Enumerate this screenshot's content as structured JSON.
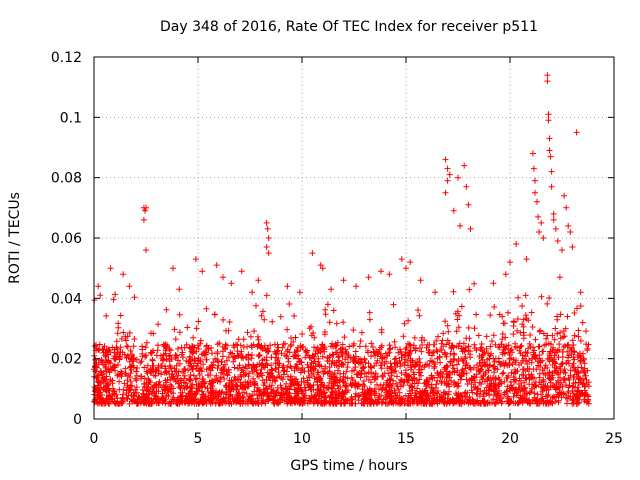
{
  "chart_data": {
    "type": "scatter",
    "title": "Day 348 of 2016, Rate Of TEC Index for receiver p511",
    "xlabel": "GPS time / hours",
    "ylabel": "ROTI / TECUs",
    "xlim": [
      0,
      25
    ],
    "ylim": [
      0,
      0.12
    ],
    "xticks": [
      0,
      5,
      10,
      15,
      20,
      25
    ],
    "xtick_labels": [
      "0",
      "5",
      "10",
      "15",
      "20",
      "25"
    ],
    "yticks": [
      0,
      0.02,
      0.04,
      0.06,
      0.08,
      0.1,
      0.12
    ],
    "ytick_labels": [
      "0",
      "0.02",
      "0.04",
      "0.06",
      "0.08",
      "0.1",
      "0.12"
    ],
    "grid": true,
    "marker": "+",
    "color": "#ff0000",
    "series": [
      {
        "name": "ROTI",
        "points": [
          [
            2.4,
            0.07
          ],
          [
            2.45,
            0.069
          ],
          [
            2.5,
            0.07
          ],
          [
            2.4,
            0.066
          ],
          [
            2.5,
            0.056
          ],
          [
            8.3,
            0.065
          ],
          [
            8.35,
            0.063
          ],
          [
            8.4,
            0.06
          ],
          [
            8.3,
            0.057
          ],
          [
            8.4,
            0.055
          ],
          [
            10.5,
            0.055
          ],
          [
            10.9,
            0.051
          ],
          [
            11.0,
            0.05
          ],
          [
            15.0,
            0.05
          ],
          [
            15.2,
            0.052
          ],
          [
            16.9,
            0.086
          ],
          [
            17.0,
            0.083
          ],
          [
            17.1,
            0.081
          ],
          [
            17.0,
            0.079
          ],
          [
            16.9,
            0.075
          ],
          [
            17.3,
            0.069
          ],
          [
            17.5,
            0.08
          ],
          [
            17.8,
            0.084
          ],
          [
            17.9,
            0.077
          ],
          [
            18.0,
            0.071
          ],
          [
            18.1,
            0.063
          ],
          [
            17.6,
            0.064
          ],
          [
            19.8,
            0.048
          ],
          [
            20.0,
            0.052
          ],
          [
            20.3,
            0.058
          ],
          [
            21.1,
            0.088
          ],
          [
            21.15,
            0.083
          ],
          [
            21.2,
            0.079
          ],
          [
            21.2,
            0.075
          ],
          [
            21.3,
            0.072
          ],
          [
            21.35,
            0.067
          ],
          [
            21.4,
            0.062
          ],
          [
            21.5,
            0.065
          ],
          [
            21.6,
            0.06
          ],
          [
            21.8,
            0.114
          ],
          [
            21.8,
            0.112
          ],
          [
            21.85,
            0.101
          ],
          [
            21.85,
            0.099
          ],
          [
            21.9,
            0.093
          ],
          [
            21.9,
            0.089
          ],
          [
            21.95,
            0.087
          ],
          [
            22.0,
            0.082
          ],
          [
            22.0,
            0.077
          ],
          [
            22.1,
            0.068
          ],
          [
            22.1,
            0.066
          ],
          [
            22.2,
            0.063
          ],
          [
            22.3,
            0.059
          ],
          [
            22.5,
            0.056
          ],
          [
            22.6,
            0.074
          ],
          [
            22.7,
            0.07
          ],
          [
            22.8,
            0.064
          ],
          [
            22.9,
            0.062
          ],
          [
            23.0,
            0.057
          ],
          [
            23.2,
            0.095
          ],
          [
            0.2,
            0.044
          ],
          [
            0.3,
            0.041
          ],
          [
            0.8,
            0.05
          ],
          [
            1.4,
            0.048
          ],
          [
            1.7,
            0.044
          ],
          [
            3.8,
            0.05
          ],
          [
            4.1,
            0.043
          ],
          [
            4.9,
            0.053
          ],
          [
            5.2,
            0.049
          ],
          [
            5.9,
            0.051
          ],
          [
            6.2,
            0.047
          ],
          [
            6.6,
            0.045
          ],
          [
            7.1,
            0.049
          ],
          [
            7.6,
            0.042
          ],
          [
            7.9,
            0.046
          ],
          [
            9.3,
            0.044
          ],
          [
            9.9,
            0.042
          ],
          [
            11.4,
            0.043
          ],
          [
            12.0,
            0.046
          ],
          [
            12.6,
            0.044
          ],
          [
            13.2,
            0.047
          ],
          [
            13.8,
            0.049
          ],
          [
            14.2,
            0.048
          ],
          [
            14.8,
            0.053
          ],
          [
            15.7,
            0.046
          ],
          [
            16.4,
            0.042
          ],
          [
            19.2,
            0.045
          ],
          [
            20.8,
            0.053
          ],
          [
            22.4,
            0.047
          ],
          [
            23.4,
            0.042
          ]
        ]
      }
    ],
    "density_profile": {
      "description": "Dense band of points from 0 to 23.8 hours with typical ROTI 0.005-0.025 and frequent spikes to 0.03-0.05",
      "x_start": 0,
      "x_end": 23.8,
      "typical_low": 0.005,
      "typical_high": 0.025
    }
  }
}
